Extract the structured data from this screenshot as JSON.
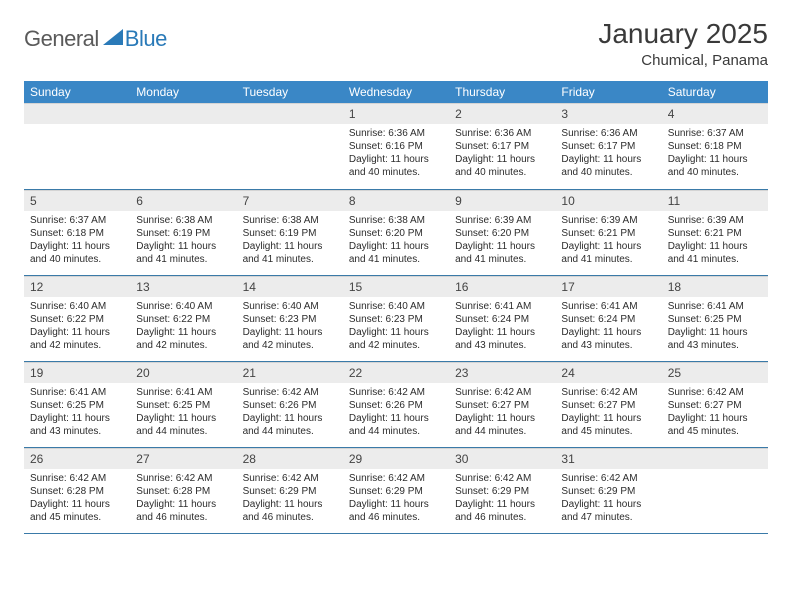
{
  "logo": {
    "general": "General",
    "blue": "Blue"
  },
  "title": "January 2025",
  "location": "Chumical, Panama",
  "colors": {
    "header_bg": "#3a87c6",
    "header_text": "#ffffff",
    "daynum_bg": "#ececec",
    "row_sep": "#3a7aa8",
    "logo_grey": "#5a5a5a",
    "logo_blue": "#2a7ab8"
  },
  "weekdays": [
    "Sunday",
    "Monday",
    "Tuesday",
    "Wednesday",
    "Thursday",
    "Friday",
    "Saturday"
  ],
  "weeks": [
    [
      null,
      null,
      null,
      {
        "n": "1",
        "sr": "6:36 AM",
        "ss": "6:16 PM",
        "dl": "11 hours and 40 minutes."
      },
      {
        "n": "2",
        "sr": "6:36 AM",
        "ss": "6:17 PM",
        "dl": "11 hours and 40 minutes."
      },
      {
        "n": "3",
        "sr": "6:36 AM",
        "ss": "6:17 PM",
        "dl": "11 hours and 40 minutes."
      },
      {
        "n": "4",
        "sr": "6:37 AM",
        "ss": "6:18 PM",
        "dl": "11 hours and 40 minutes."
      }
    ],
    [
      {
        "n": "5",
        "sr": "6:37 AM",
        "ss": "6:18 PM",
        "dl": "11 hours and 40 minutes."
      },
      {
        "n": "6",
        "sr": "6:38 AM",
        "ss": "6:19 PM",
        "dl": "11 hours and 41 minutes."
      },
      {
        "n": "7",
        "sr": "6:38 AM",
        "ss": "6:19 PM",
        "dl": "11 hours and 41 minutes."
      },
      {
        "n": "8",
        "sr": "6:38 AM",
        "ss": "6:20 PM",
        "dl": "11 hours and 41 minutes."
      },
      {
        "n": "9",
        "sr": "6:39 AM",
        "ss": "6:20 PM",
        "dl": "11 hours and 41 minutes."
      },
      {
        "n": "10",
        "sr": "6:39 AM",
        "ss": "6:21 PM",
        "dl": "11 hours and 41 minutes."
      },
      {
        "n": "11",
        "sr": "6:39 AM",
        "ss": "6:21 PM",
        "dl": "11 hours and 41 minutes."
      }
    ],
    [
      {
        "n": "12",
        "sr": "6:40 AM",
        "ss": "6:22 PM",
        "dl": "11 hours and 42 minutes."
      },
      {
        "n": "13",
        "sr": "6:40 AM",
        "ss": "6:22 PM",
        "dl": "11 hours and 42 minutes."
      },
      {
        "n": "14",
        "sr": "6:40 AM",
        "ss": "6:23 PM",
        "dl": "11 hours and 42 minutes."
      },
      {
        "n": "15",
        "sr": "6:40 AM",
        "ss": "6:23 PM",
        "dl": "11 hours and 42 minutes."
      },
      {
        "n": "16",
        "sr": "6:41 AM",
        "ss": "6:24 PM",
        "dl": "11 hours and 43 minutes."
      },
      {
        "n": "17",
        "sr": "6:41 AM",
        "ss": "6:24 PM",
        "dl": "11 hours and 43 minutes."
      },
      {
        "n": "18",
        "sr": "6:41 AM",
        "ss": "6:25 PM",
        "dl": "11 hours and 43 minutes."
      }
    ],
    [
      {
        "n": "19",
        "sr": "6:41 AM",
        "ss": "6:25 PM",
        "dl": "11 hours and 43 minutes."
      },
      {
        "n": "20",
        "sr": "6:41 AM",
        "ss": "6:25 PM",
        "dl": "11 hours and 44 minutes."
      },
      {
        "n": "21",
        "sr": "6:42 AM",
        "ss": "6:26 PM",
        "dl": "11 hours and 44 minutes."
      },
      {
        "n": "22",
        "sr": "6:42 AM",
        "ss": "6:26 PM",
        "dl": "11 hours and 44 minutes."
      },
      {
        "n": "23",
        "sr": "6:42 AM",
        "ss": "6:27 PM",
        "dl": "11 hours and 44 minutes."
      },
      {
        "n": "24",
        "sr": "6:42 AM",
        "ss": "6:27 PM",
        "dl": "11 hours and 45 minutes."
      },
      {
        "n": "25",
        "sr": "6:42 AM",
        "ss": "6:27 PM",
        "dl": "11 hours and 45 minutes."
      }
    ],
    [
      {
        "n": "26",
        "sr": "6:42 AM",
        "ss": "6:28 PM",
        "dl": "11 hours and 45 minutes."
      },
      {
        "n": "27",
        "sr": "6:42 AM",
        "ss": "6:28 PM",
        "dl": "11 hours and 46 minutes."
      },
      {
        "n": "28",
        "sr": "6:42 AM",
        "ss": "6:29 PM",
        "dl": "11 hours and 46 minutes."
      },
      {
        "n": "29",
        "sr": "6:42 AM",
        "ss": "6:29 PM",
        "dl": "11 hours and 46 minutes."
      },
      {
        "n": "30",
        "sr": "6:42 AM",
        "ss": "6:29 PM",
        "dl": "11 hours and 46 minutes."
      },
      {
        "n": "31",
        "sr": "6:42 AM",
        "ss": "6:29 PM",
        "dl": "11 hours and 47 minutes."
      },
      null
    ]
  ],
  "labels": {
    "sunrise": "Sunrise:",
    "sunset": "Sunset:",
    "daylight": "Daylight:"
  }
}
